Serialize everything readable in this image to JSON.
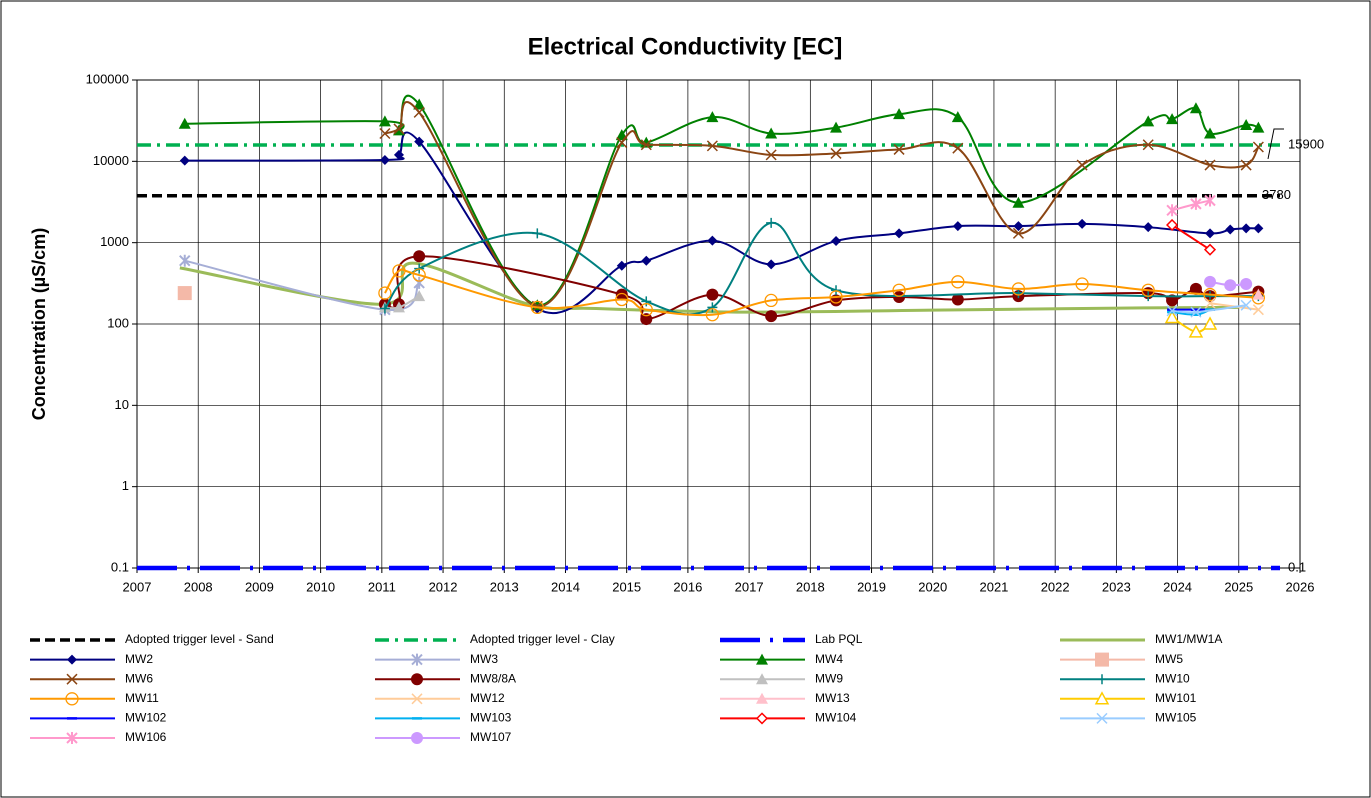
{
  "chart_data": {
    "type": "line",
    "title": "Electrical Conductivity [EC]",
    "y_label": "Concentration (µS/cm)",
    "log_y": true,
    "grid": true,
    "xlim": [
      2007,
      2026
    ],
    "xticks": [
      2007,
      2008,
      2009,
      2010,
      2011,
      2012,
      2013,
      2014,
      2015,
      2016,
      2017,
      2018,
      2019,
      2020,
      2021,
      2022,
      2023,
      2024,
      2025,
      2026
    ],
    "ylim": [
      0.1,
      100000
    ],
    "yticks": [
      0.1,
      1,
      10,
      100,
      1000,
      10000,
      100000
    ],
    "legend": "bottom",
    "hlines": [
      {
        "name": "Adopted trigger level - Sand",
        "color": "#000000",
        "style": "dash",
        "value": 3780
      },
      {
        "name": "Adopted trigger level - Clay",
        "color": "#00b050",
        "style": "dashdot",
        "value": 15900
      },
      {
        "name": "Lab PQL",
        "color": "#0000ff",
        "style": "pql",
        "value": 0.1
      }
    ],
    "series": [
      {
        "name": "MW1/MW1A",
        "color": "#9bbb59",
        "marker": "none",
        "x": [
          2007.7,
          2011.0,
          2011.5,
          2013.4,
          2014.5,
          2017.0,
          2020.0,
          2023.5,
          2025.0
        ],
        "values": [
          490,
          175,
          560,
          175,
          155,
          140,
          148,
          158,
          160
        ]
      },
      {
        "name": "MW2",
        "color": "#000080",
        "marker": "diamond",
        "x": [
          2007.78,
          2011.05,
          2011.28,
          2011.61,
          2013.54,
          2014.92,
          2015.32,
          2016.4,
          2017.36,
          2018.42,
          2019.45,
          2020.41,
          2021.4,
          2022.44,
          2023.52,
          2024.53,
          2024.86,
          2025.12,
          2025.32
        ],
        "values": [
          10200,
          10400,
          12000,
          17500,
          155,
          520,
          600,
          1060,
          540,
          1050,
          1300,
          1600,
          1600,
          1700,
          1550,
          1300,
          1450,
          1500,
          1500
        ]
      },
      {
        "name": "MW3",
        "color": "#a6aed6",
        "marker": "star",
        "x": [
          2007.78,
          2011.05,
          2011.61
        ],
        "values": [
          600,
          150,
          320
        ]
      },
      {
        "name": "MW4",
        "color": "#008000",
        "marker": "triangle",
        "x": [
          2007.78,
          2011.05,
          2011.28,
          2011.61,
          2013.54,
          2014.92,
          2015.32,
          2016.4,
          2017.36,
          2018.42,
          2019.45,
          2020.41,
          2021.4,
          2023.52,
          2023.91,
          2024.3,
          2024.53,
          2025.12,
          2025.32
        ],
        "values": [
          29000,
          31000,
          24000,
          50000,
          170,
          21000,
          17000,
          35000,
          22000,
          26000,
          38000,
          35000,
          3100,
          31000,
          33000,
          45000,
          22000,
          28000,
          26000
        ]
      },
      {
        "name": "MW5",
        "color": "#f4b9a8",
        "marker": "square",
        "x": [
          2007.78
        ],
        "values": [
          240
        ]
      },
      {
        "name": "MW6",
        "color": "#8b4513",
        "marker": "x",
        "x": [
          2011.05,
          2011.28,
          2011.61,
          2013.54,
          2014.92,
          2015.32,
          2016.4,
          2017.36,
          2018.42,
          2019.45,
          2020.41,
          2021.4,
          2022.44,
          2023.52,
          2024.53,
          2025.12,
          2025.32
        ],
        "values": [
          22000,
          25000,
          40000,
          165,
          17000,
          16000,
          15500,
          12000,
          12500,
          14000,
          14500,
          1300,
          9000,
          16000,
          9000,
          9000,
          15000
        ]
      },
      {
        "name": "MW8/8A",
        "color": "#800000",
        "marker": "circle",
        "x": [
          2011.05,
          2011.28,
          2011.61,
          2014.92,
          2015.32,
          2016.4,
          2017.36,
          2018.42,
          2019.45,
          2020.41,
          2021.4,
          2023.52,
          2023.91,
          2024.3,
          2024.53,
          2025.32
        ],
        "values": [
          175,
          175,
          680,
          230,
          115,
          230,
          125,
          195,
          215,
          200,
          220,
          240,
          195,
          270,
          220,
          250
        ]
      },
      {
        "name": "MW9",
        "color": "#c0c0c0",
        "marker": "triangle",
        "x": [
          2011.05,
          2011.28,
          2011.61
        ],
        "values": [
          160,
          160,
          220
        ]
      },
      {
        "name": "MW10",
        "color": "#008080",
        "marker": "plus",
        "x": [
          2011.05,
          2011.61,
          2013.54,
          2015.32,
          2016.4,
          2017.36,
          2018.42,
          2021.4,
          2023.52,
          2024.53,
          2025.32
        ],
        "values": [
          155,
          480,
          1300,
          190,
          160,
          1750,
          260,
          240,
          220,
          220,
          220
        ]
      },
      {
        "name": "MW11",
        "color": "#ff9900",
        "marker": "opencircle",
        "x": [
          2011.05,
          2011.28,
          2011.61,
          2013.54,
          2014.92,
          2015.32,
          2016.4,
          2017.36,
          2018.42,
          2019.45,
          2020.41,
          2021.4,
          2022.44,
          2023.52,
          2024.53,
          2025.32
        ],
        "values": [
          240,
          450,
          400,
          160,
          200,
          150,
          130,
          195,
          215,
          260,
          330,
          270,
          310,
          260,
          230,
          210
        ]
      },
      {
        "name": "MW12",
        "color": "#ffcc99",
        "marker": "x",
        "x": [
          2024.53,
          2025.32
        ],
        "values": [
          180,
          150
        ]
      },
      {
        "name": "MW13",
        "color": "#ffc0cb",
        "marker": "triangle",
        "x": [
          2025.32
        ],
        "values": [
          230
        ]
      },
      {
        "name": "MW101",
        "color": "#ffcc00",
        "marker": "opentriangle",
        "x": [
          2023.91,
          2024.3,
          2024.53
        ],
        "values": [
          120,
          80,
          100
        ]
      },
      {
        "name": "MW102",
        "color": "#0000ff",
        "marker": "dash",
        "x": [
          2023.91,
          2024.3,
          2024.53
        ],
        "values": [
          150,
          150,
          150
        ]
      },
      {
        "name": "MW103",
        "color": "#00b0f0",
        "marker": "dash",
        "x": [
          2023.91,
          2024.3,
          2024.53
        ],
        "values": [
          140,
          130,
          150
        ]
      },
      {
        "name": "MW104",
        "color": "#ff0000",
        "marker": "opendiamond",
        "x": [
          2023.91,
          2024.53
        ],
        "values": [
          1650,
          820
        ]
      },
      {
        "name": "MW105",
        "color": "#99ccff",
        "marker": "x",
        "x": [
          2023.91,
          2024.3,
          2025.12
        ],
        "values": [
          145,
          140,
          170
        ]
      },
      {
        "name": "MW106",
        "color": "#ff99cc",
        "marker": "star",
        "x": [
          2023.91,
          2024.3,
          2024.53
        ],
        "values": [
          2500,
          3000,
          3300
        ]
      },
      {
        "name": "MW107",
        "color": "#cc99ff",
        "marker": "circle",
        "x": [
          2024.53,
          2024.86,
          2025.12
        ],
        "values": [
          330,
          300,
          310
        ]
      }
    ]
  }
}
